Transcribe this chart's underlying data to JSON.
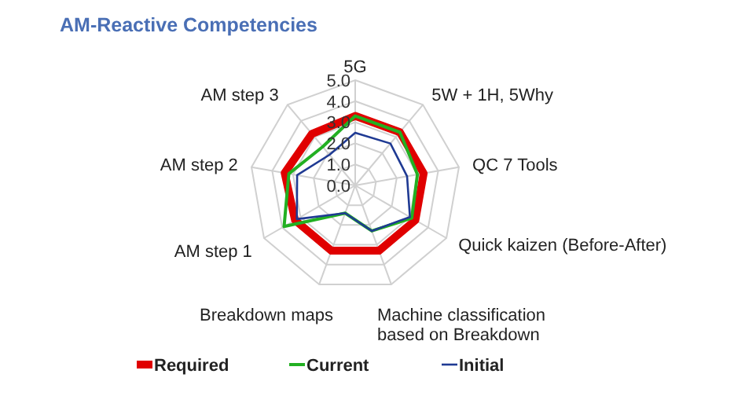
{
  "chart_data": {
    "type": "radar",
    "title": "AM-Reactive Competencies",
    "categories": [
      "5G",
      "5W + 1H, 5Why",
      "QC 7 Tools",
      "Quick kaizen (Before-After)",
      "Machine classification based on Breakdown",
      "Breakdown maps",
      "AM step 1",
      "AM step 2",
      "AM step 3"
    ],
    "ylim": [
      0,
      5
    ],
    "yticks": [
      {
        "value": 0,
        "label": "0.0"
      },
      {
        "value": 1,
        "label": "1.0"
      },
      {
        "value": 2,
        "label": "2.0"
      },
      {
        "value": 3,
        "label": "3.0"
      },
      {
        "value": 4,
        "label": "4.0"
      },
      {
        "value": 5,
        "label": "5.0"
      }
    ],
    "grid": true,
    "legend": "bottom",
    "marker": "none",
    "line_style": "solid",
    "series": [
      {
        "name": "Required",
        "color": "#e00000",
        "values": [
          3.3,
          3.3,
          3.3,
          3.3,
          3.3,
          3.3,
          3.3,
          3.4,
          3.2
        ]
      },
      {
        "name": "Current",
        "color": "#22b022",
        "values": [
          3.3,
          3.3,
          3.0,
          3.1,
          2.3,
          1.4,
          3.9,
          3.2,
          2.4
        ]
      },
      {
        "name": "Initial",
        "color": "#1f3a93",
        "values": [
          2.5,
          2.6,
          2.5,
          3.0,
          2.3,
          1.4,
          3.2,
          2.8,
          1.9
        ]
      }
    ]
  }
}
